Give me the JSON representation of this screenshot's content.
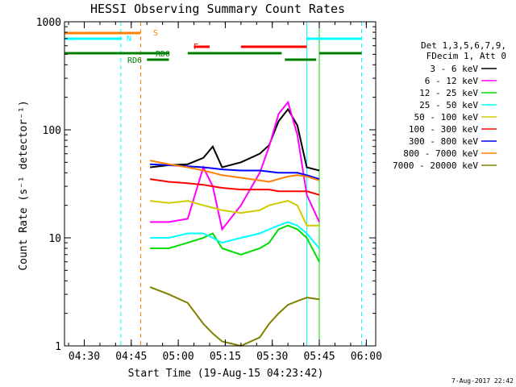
{
  "chart_data": {
    "type": "line",
    "title": "HESSI Observing Summary Count Rates",
    "xlabel": "Start Time (19-Aug-15 04:23:42)",
    "ylabel": "Count Rate (s⁻¹ detector⁻¹)",
    "y_scale": "log",
    "ylim": [
      1,
      1000
    ],
    "xlim_minutes": [
      "04:23:42",
      "06:03:00"
    ],
    "x_ticks": [
      "04:30",
      "04:45",
      "05:00",
      "05:15",
      "05:30",
      "05:45",
      "06:00"
    ],
    "y_ticks": [
      "1",
      "10",
      "100",
      "1000"
    ],
    "timestamp": "7-Aug-2017 22:42",
    "legend": {
      "header": [
        "Det 1,3,5,6,7,9,",
        "FDecim 1, Att 0"
      ],
      "position": "right",
      "entries": [
        {
          "label": "3 - 6 keV",
          "color": "#000000"
        },
        {
          "label": "6 - 12 keV",
          "color": "#ff00ff"
        },
        {
          "label": "12 - 25 keV",
          "color": "#00dd00"
        },
        {
          "label": "25 - 50 keV",
          "color": "#00ffff"
        },
        {
          "label": "50 - 100 keV",
          "color": "#cccc00"
        },
        {
          "label": "100 - 300 keV",
          "color": "#ff0000"
        },
        {
          "label": "300 - 800 keV",
          "color": "#0000ff"
        },
        {
          "label": "800 - 7000 keV",
          "color": "#ff8000"
        },
        {
          "label": "7000 - 20000 keV",
          "color": "#808000"
        }
      ]
    },
    "flag_bars": [
      {
        "label": "S",
        "color": "#ff8000",
        "segments": [
          [
            "04:23:42",
            "04:48:00"
          ]
        ]
      },
      {
        "label": "N",
        "color": "#00ffff",
        "segments": [
          [
            "04:23:42",
            "04:42:00"
          ],
          [
            "05:41:00",
            "05:58:30"
          ]
        ]
      },
      {
        "label": "F",
        "color": "#ff0000",
        "segments": [
          [
            "05:05:00",
            "05:10:00"
          ],
          [
            "05:20:00",
            "05:41:00"
          ]
        ]
      },
      {
        "label": "RD0",
        "color": "#008000",
        "segments": [
          [
            "04:23:42",
            "04:57:00"
          ],
          [
            "05:03:00",
            "05:33:00"
          ],
          [
            "05:45:00",
            "05:58:30"
          ]
        ]
      },
      {
        "label": "RD6",
        "color": "#008000",
        "segments": [
          [
            "04:50:00",
            "04:57:00"
          ],
          [
            "05:34:00",
            "05:44:00"
          ]
        ]
      }
    ],
    "vertical_lines": [
      {
        "time": "04:23:42",
        "color": "#00ffff",
        "style": "solid"
      },
      {
        "time": "04:41:40",
        "color": "#00ffff",
        "style": "dashed"
      },
      {
        "time": "04:48:00",
        "color": "#ff8000",
        "style": "dashed"
      },
      {
        "time": "05:41:00",
        "color": "#00ffff",
        "style": "solid"
      },
      {
        "time": "05:45:00",
        "color": "#00dd00",
        "style": "solid"
      },
      {
        "time": "05:58:30",
        "color": "#00ffff",
        "style": "dashed"
      }
    ],
    "x_minutes": [
      "04:51",
      "04:57",
      "05:03",
      "05:08",
      "05:11",
      "05:14",
      "05:20",
      "05:26",
      "05:29",
      "05:32",
      "05:35",
      "05:38",
      "05:41",
      "05:45"
    ],
    "series": [
      {
        "name": "3 - 6 keV",
        "color": "#000000",
        "values": [
          45,
          47,
          48,
          55,
          70,
          45,
          50,
          60,
          72,
          120,
          155,
          110,
          45,
          42
        ]
      },
      {
        "name": "6 - 12 keV",
        "color": "#ff00ff",
        "values": [
          14,
          14,
          15,
          45,
          30,
          12,
          20,
          40,
          70,
          140,
          180,
          90,
          25,
          14
        ]
      },
      {
        "name": "12 - 25 keV",
        "color": "#00dd00",
        "values": [
          8,
          8,
          9,
          10,
          11,
          8,
          7,
          8,
          9,
          12,
          13,
          12,
          10,
          6
        ]
      },
      {
        "name": "25 - 50 keV",
        "color": "#00ffff",
        "values": [
          10,
          10,
          11,
          11,
          10,
          9,
          10,
          11,
          12,
          13,
          14,
          13,
          11,
          8
        ]
      },
      {
        "name": "50 - 100 keV",
        "color": "#cccc00",
        "values": [
          22,
          21,
          22,
          20,
          19,
          18,
          17,
          18,
          20,
          21,
          22,
          20,
          13,
          13
        ]
      },
      {
        "name": "100 - 300 keV",
        "color": "#ff0000",
        "values": [
          35,
          33,
          32,
          31,
          30,
          29,
          28,
          28,
          28,
          27,
          27,
          27,
          27,
          25
        ]
      },
      {
        "name": "300 - 800 keV",
        "color": "#0000ff",
        "values": [
          48,
          47,
          46,
          45,
          44,
          43,
          42,
          42,
          41,
          40,
          40,
          40,
          38,
          35
        ]
      },
      {
        "name": "800 - 7000 keV",
        "color": "#ff8000",
        "values": [
          52,
          48,
          45,
          42,
          40,
          38,
          36,
          34,
          33,
          35,
          37,
          38,
          37,
          34
        ]
      },
      {
        "name": "7000 - 20000 keV",
        "color": "#808000",
        "values": [
          3.5,
          3.0,
          2.5,
          1.6,
          1.3,
          1.1,
          1.0,
          1.2,
          1.6,
          2.0,
          2.4,
          2.6,
          2.8,
          2.7
        ]
      }
    ]
  }
}
